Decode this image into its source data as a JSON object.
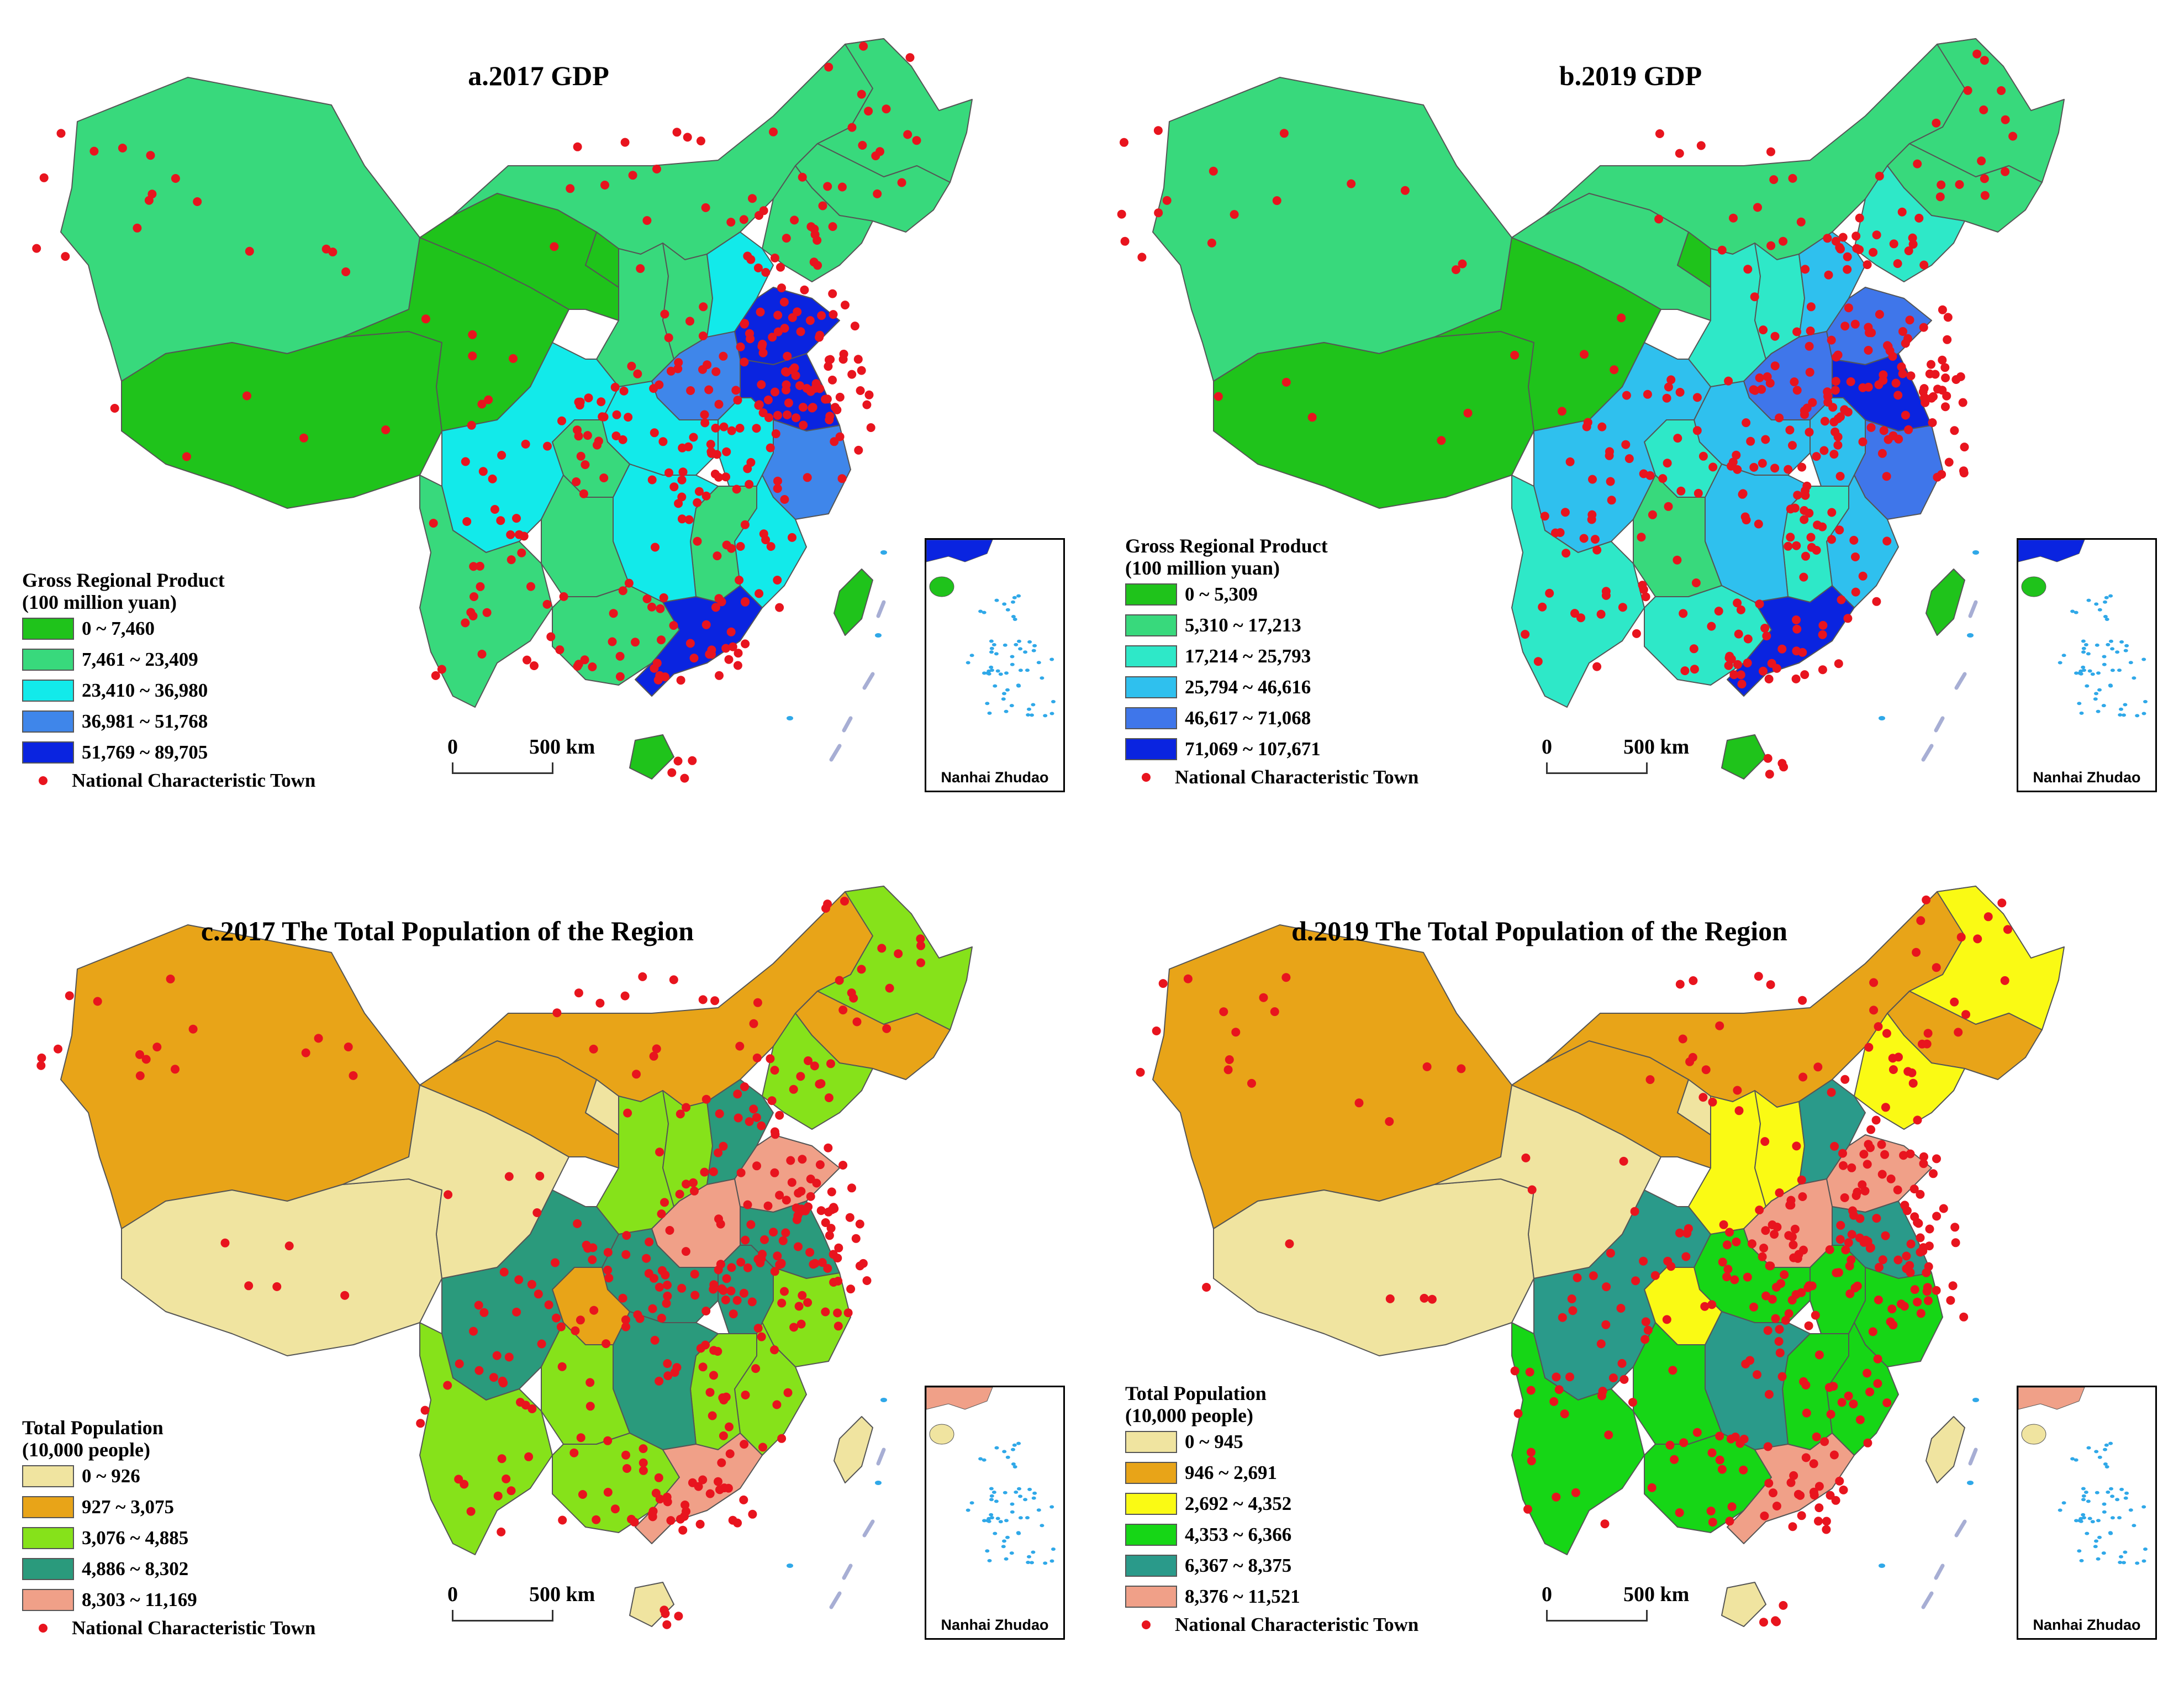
{
  "colors": {
    "town": "#e8141e",
    "islands": "#2fa8e8",
    "dash": "#a7aed4",
    "border": "#555555"
  },
  "panels": [
    {
      "title": "a.2017 GDP",
      "legend_title": [
        "Gross Regional Product",
        "(100 million yuan)"
      ],
      "classes": [
        {
          "label": "0 ~ 7,460",
          "color": "#1fc31b"
        },
        {
          "label": "7,461 ~ 23,409",
          "color": "#38d97c"
        },
        {
          "label": "23,410 ~ 36,980",
          "color": "#12eaea"
        },
        {
          "label": "36,981 ~ 51,768",
          "color": "#3f86ea"
        },
        {
          "label": "51,769 ~ 89,705",
          "color": "#0a24e0"
        }
      ],
      "region_class": {
        "xinjiang": 1,
        "tibet": 0,
        "qinghai": 0,
        "gansu": 0,
        "neimenggu": 1,
        "heilongjiang": 1,
        "jilin": 1,
        "liaoning": 1,
        "sichuan": 2,
        "yunnan": 1,
        "guangxi": 1,
        "guangdong": 4,
        "hubei": 2,
        "hunan": 2,
        "henan": 3,
        "shandong": 4,
        "hebei": 2,
        "jiangsu": 4,
        "zhejiang": 3,
        "fujian": 2,
        "jiangxi": 1,
        "anhui": 2,
        "shaanxi": 1,
        "shanxi": 1,
        "chongqing": 1,
        "guizhou": 1,
        "ningxia": 0,
        "hainan": 0,
        "taiwan": 0
      },
      "town_legend": "National Characteristic Town",
      "scale": {
        "zero": "0",
        "distance": "500 km"
      },
      "inset_label": "Nanhai Zhudao"
    },
    {
      "title": "b.2019 GDP",
      "legend_title": [
        "Gross Regional Product",
        "(100 million yuan)"
      ],
      "classes": [
        {
          "label": "0 ~ 5,309",
          "color": "#1fc31b"
        },
        {
          "label": "5,310 ~ 17,213",
          "color": "#38d97c"
        },
        {
          "label": "17,214 ~ 25,793",
          "color": "#2ee8c8"
        },
        {
          "label": "25,794 ~ 46,616",
          "color": "#2fc0ee"
        },
        {
          "label": "46,617 ~ 71,068",
          "color": "#3f76ea"
        },
        {
          "label": "71,069 ~ 107,671",
          "color": "#0a24e0"
        }
      ],
      "region_class": {
        "xinjiang": 1,
        "tibet": 0,
        "qinghai": 0,
        "gansu": 1,
        "neimenggu": 1,
        "heilongjiang": 1,
        "jilin": 1,
        "liaoning": 2,
        "sichuan": 3,
        "yunnan": 2,
        "guangxi": 2,
        "guangdong": 5,
        "hubei": 3,
        "hunan": 3,
        "henan": 4,
        "shandong": 4,
        "hebei": 3,
        "jiangsu": 5,
        "zhejiang": 4,
        "fujian": 3,
        "jiangxi": 2,
        "anhui": 3,
        "shaanxi": 2,
        "shanxi": 2,
        "chongqing": 2,
        "guizhou": 1,
        "ningxia": 0,
        "hainan": 0,
        "taiwan": 0
      },
      "town_legend": "National Characteristic Town",
      "scale": {
        "zero": "0",
        "distance": "500 km"
      },
      "inset_label": "Nanhai Zhudao"
    },
    {
      "title": "c.2017 The Total Population of the Region",
      "legend_title": [
        "Total Population",
        "(10,000 people)"
      ],
      "classes": [
        {
          "label": "0 ~ 926",
          "color": "#f0e4a0"
        },
        {
          "label": "927 ~ 3,075",
          "color": "#e8a418"
        },
        {
          "label": "3,076 ~ 4,885",
          "color": "#86e21a"
        },
        {
          "label": "4,886 ~ 8,302",
          "color": "#2a9a7c"
        },
        {
          "label": "8,303 ~ 11,169",
          "color": "#f0a088"
        }
      ],
      "region_class": {
        "xinjiang": 1,
        "tibet": 0,
        "qinghai": 0,
        "gansu": 1,
        "neimenggu": 1,
        "heilongjiang": 2,
        "jilin": 1,
        "liaoning": 2,
        "sichuan": 3,
        "yunnan": 2,
        "guangxi": 2,
        "guangdong": 4,
        "hubei": 3,
        "hunan": 3,
        "henan": 4,
        "shandong": 4,
        "hebei": 3,
        "jiangsu": 3,
        "zhejiang": 2,
        "fujian": 2,
        "jiangxi": 2,
        "anhui": 3,
        "shaanxi": 2,
        "shanxi": 2,
        "chongqing": 1,
        "guizhou": 2,
        "ningxia": 0,
        "hainan": 0,
        "taiwan": 0
      },
      "town_legend": "National Characteristic Town",
      "scale": {
        "zero": "0",
        "distance": "500 km"
      },
      "inset_label": "Nanhai Zhudao"
    },
    {
      "title": "d.2019 The Total Population of the Region",
      "legend_title": [
        "Total Population",
        "(10,000 people)"
      ],
      "classes": [
        {
          "label": "0 ~ 945",
          "color": "#f0e4a0"
        },
        {
          "label": "946 ~ 2,691",
          "color": "#e8a418"
        },
        {
          "label": "2,692 ~ 4,352",
          "color": "#fafa14"
        },
        {
          "label": "4,353 ~ 6,366",
          "color": "#16d616"
        },
        {
          "label": "6,367 ~ 8,375",
          "color": "#2a9a8a"
        },
        {
          "label": "8,376 ~ 11,521",
          "color": "#f0a088"
        }
      ],
      "region_class": {
        "xinjiang": 1,
        "tibet": 0,
        "qinghai": 0,
        "gansu": 1,
        "neimenggu": 1,
        "heilongjiang": 2,
        "jilin": 1,
        "liaoning": 2,
        "sichuan": 4,
        "yunnan": 3,
        "guangxi": 3,
        "guangdong": 5,
        "hubei": 3,
        "hunan": 4,
        "henan": 5,
        "shandong": 5,
        "hebei": 4,
        "jiangsu": 4,
        "zhejiang": 3,
        "fujian": 3,
        "jiangxi": 3,
        "anhui": 3,
        "shaanxi": 2,
        "shanxi": 2,
        "chongqing": 2,
        "guizhou": 3,
        "ningxia": 0,
        "hainan": 0,
        "taiwan": 0
      },
      "town_legend": "National Characteristic Town",
      "scale": {
        "zero": "0",
        "distance": "500 km"
      },
      "inset_label": "Nanhai Zhudao"
    }
  ]
}
